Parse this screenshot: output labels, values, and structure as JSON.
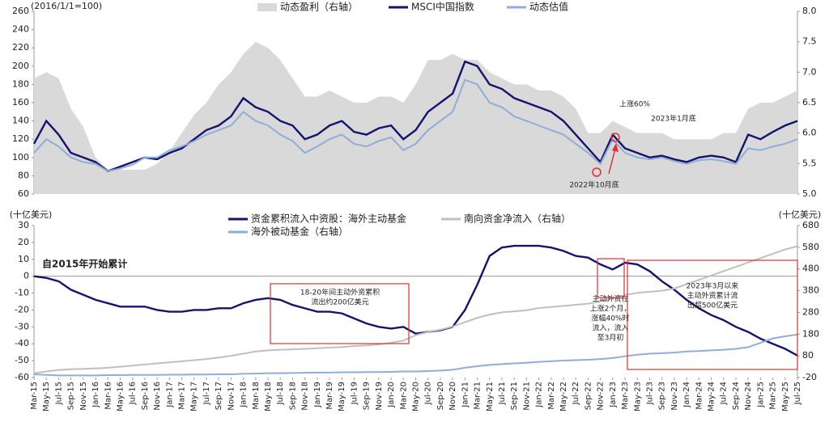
{
  "chart_data": [
    {
      "type": "line",
      "y_axis_label": "(2016/1/1=100)",
      "categories": [
        null,
        null,
        null,
        null,
        null,
        null,
        null,
        null,
        null,
        null,
        null,
        null,
        null,
        null,
        null,
        null,
        null,
        null,
        null,
        null,
        null,
        null,
        null,
        null,
        null,
        null,
        null,
        null,
        null,
        null,
        null,
        null,
        null,
        null,
        null,
        null,
        null,
        null,
        null,
        null,
        null,
        null,
        null,
        null,
        null,
        null,
        null,
        null,
        null,
        null,
        null,
        null,
        null,
        null,
        null,
        null,
        null,
        null,
        null,
        null,
        null,
        null,
        null
      ],
      "ylim": [
        60,
        260
      ],
      "yticks": [
        60,
        80,
        100,
        120,
        140,
        160,
        180,
        200,
        220,
        240,
        260
      ],
      "y2lim": [
        5,
        8
      ],
      "y2ticks": [
        {
          "value": 5,
          "label": "5.0"
        },
        {
          "value": 5.5,
          "label": "5.5"
        },
        {
          "value": 6,
          "label": "6.0"
        },
        {
          "value": 6.5,
          "label": "6.5"
        },
        {
          "value": 7,
          "label": "7.0"
        },
        {
          "value": 7.5,
          "label": "7.5"
        },
        {
          "value": 8,
          "label": "8.0"
        }
      ],
      "series": [
        {
          "name": "动态盈利（右轴）",
          "type": "area",
          "axis": "y2",
          "color": "#d9d9d9",
          "values": [
            6.9,
            7.0,
            6.9,
            6.4,
            6.1,
            5.6,
            5.4,
            5.4,
            5.4,
            5.4,
            5.5,
            5.7,
            6.0,
            6.3,
            6.5,
            6.8,
            7.0,
            7.3,
            7.5,
            7.4,
            7.2,
            6.9,
            6.6,
            6.6,
            6.7,
            6.6,
            6.5,
            6.5,
            6.6,
            6.6,
            6.5,
            6.8,
            7.2,
            7.2,
            7.3,
            7.2,
            7.2,
            7.0,
            6.9,
            6.8,
            6.8,
            6.7,
            6.7,
            6.6,
            6.4,
            6.0,
            6.0,
            6.2,
            6.1,
            6.0,
            6.0,
            6.0,
            5.9,
            5.9,
            5.9,
            5.9,
            6.0,
            6.0,
            6.4,
            6.5,
            6.5,
            6.6,
            6.7
          ]
        },
        {
          "name": "MSCI中国指数",
          "type": "line",
          "color": "#14146e",
          "values": [
            115,
            140,
            125,
            105,
            100,
            95,
            85,
            90,
            95,
            100,
            98,
            105,
            110,
            120,
            130,
            135,
            145,
            165,
            155,
            150,
            140,
            135,
            120,
            125,
            135,
            140,
            128,
            125,
            132,
            135,
            120,
            130,
            150,
            160,
            170,
            205,
            200,
            180,
            175,
            165,
            160,
            155,
            150,
            140,
            125,
            110,
            95,
            125,
            110,
            105,
            100,
            102,
            98,
            95,
            100,
            102,
            100,
            95,
            125,
            120,
            128,
            135,
            140
          ]
        },
        {
          "name": "动态估值",
          "type": "line",
          "color": "#8eaed8",
          "values": [
            105,
            120,
            112,
            100,
            95,
            93,
            85,
            88,
            92,
            100,
            100,
            108,
            112,
            118,
            125,
            130,
            135,
            150,
            140,
            135,
            125,
            118,
            105,
            112,
            120,
            125,
            115,
            112,
            118,
            122,
            108,
            115,
            130,
            140,
            150,
            185,
            180,
            160,
            155,
            145,
            140,
            135,
            130,
            125,
            115,
            105,
            93,
            120,
            105,
            100,
            98,
            100,
            96,
            93,
            97,
            98,
            96,
            93,
            110,
            108,
            112,
            115,
            120
          ]
        }
      ],
      "annotations": [
        {
          "lines": [
            "上涨60%"
          ]
        },
        {
          "lines": [
            "2023年1月底"
          ]
        },
        {
          "lines": [
            "2022年10月底"
          ]
        }
      ]
    },
    {
      "type": "line",
      "y_axis_label": "(十亿美元)",
      "y2_axis_label": "(十亿美元)",
      "categories": [
        "Mar-15",
        "May-15",
        "Jul-15",
        "Sep-15",
        "Nov-15",
        "Jan-16",
        "Mar-16",
        "May-16",
        "Jul-16",
        "Sep-16",
        "Nov-16",
        "Jan-17",
        "Mar-17",
        "May-17",
        "Jul-17",
        "Sep-17",
        "Nov-17",
        "Jan-18",
        "Mar-18",
        "May-18",
        "Jul-18",
        "Sep-18",
        "Nov-18",
        "Jan-19",
        "Mar-19",
        "May-19",
        "Jul-19",
        "Sep-19",
        "Nov-19",
        "Jan-20",
        "Mar-20",
        "May-20",
        "Jul-20",
        "Sep-20",
        "Nov-20",
        "Jan-21",
        "Mar-21",
        "May-21",
        "Jul-21",
        "Sep-21",
        "Nov-21",
        "Jan-22",
        "Mar-22",
        "May-22",
        "Jul-22",
        "Sep-22",
        "Nov-22",
        "Jan-23",
        "Mar-23",
        "May-23",
        "Jul-23",
        "Sep-23",
        "Nov-23",
        "Jan-24",
        "Mar-24",
        "May-24",
        "Jul-24",
        "Sep-24",
        "Nov-24",
        "Jan-25",
        "Mar-25",
        "May-25",
        "Jul-25"
      ],
      "ylim": [
        -60,
        30
      ],
      "yticks": [
        -60,
        -50,
        -40,
        -30,
        -20,
        -10,
        0,
        10,
        20,
        30
      ],
      "y2lim": [
        -20,
        680
      ],
      "y2ticks": [
        -20,
        80,
        180,
        280,
        380,
        480,
        580,
        680
      ],
      "series": [
        {
          "name": "资金累积流入中资股：海外主动基金",
          "type": "line",
          "color": "#14146e",
          "values": [
            0,
            -1,
            -3,
            -8,
            -11,
            -14,
            -16,
            -18,
            -18,
            -18,
            -20,
            -21,
            -21,
            -20,
            -20,
            -19,
            -19,
            -16,
            -14,
            -13,
            -14,
            -17,
            -19,
            -21,
            -21,
            -22,
            -25,
            -28,
            -30,
            -31,
            -30,
            -34,
            -33,
            -32,
            -30,
            -20,
            -5,
            12,
            17,
            18,
            18,
            18,
            17,
            15,
            12,
            11,
            7,
            4,
            8,
            7,
            3,
            -3,
            -8,
            -14,
            -19,
            -23,
            -26,
            -30,
            -33,
            -37,
            -40,
            -43,
            -47
          ]
        },
        {
          "name": "南向资金净流入（右轴）",
          "type": "line",
          "axis": "y2",
          "color": "#bfbfbf",
          "values": [
            0,
            8,
            15,
            18,
            20,
            22,
            25,
            30,
            35,
            40,
            45,
            50,
            55,
            60,
            65,
            72,
            80,
            90,
            100,
            105,
            108,
            110,
            112,
            115,
            118,
            120,
            125,
            128,
            132,
            140,
            150,
            175,
            190,
            200,
            215,
            235,
            255,
            270,
            280,
            285,
            290,
            300,
            305,
            310,
            315,
            320,
            330,
            345,
            360,
            370,
            375,
            380,
            390,
            410,
            430,
            450,
            470,
            490,
            510,
            530,
            550,
            570,
            585
          ]
        },
        {
          "name": "海外被动基金（右轴）",
          "type": "line",
          "axis": "y2",
          "color": "#8eaed8",
          "values": [
            -5,
            -8,
            -10,
            -10,
            -10,
            -10,
            -9,
            -9,
            -8,
            -8,
            -8,
            -7,
            -7,
            -6,
            -6,
            -5,
            -5,
            -3,
            -2,
            0,
            0,
            1,
            2,
            3,
            3,
            4,
            4,
            5,
            5,
            6,
            8,
            8,
            10,
            12,
            16,
            25,
            32,
            38,
            42,
            45,
            48,
            52,
            55,
            58,
            60,
            62,
            65,
            70,
            78,
            85,
            90,
            92,
            95,
            100,
            102,
            105,
            108,
            112,
            120,
            140,
            160,
            170,
            178
          ]
        }
      ],
      "annotations": [
        {
          "lines": [
            "自2015年开始累计"
          ]
        },
        {
          "lines": [
            "18-20年间主动外资累积",
            "流出约200亿美元"
          ]
        },
        {
          "lines": [
            "主动外资在",
            "上涨2个月，",
            "涨幅40%时",
            "流入，流入",
            "至3月初"
          ]
        },
        {
          "lines": [
            "2023年3月以来",
            "主动外资累计流",
            "出超500亿美元"
          ]
        }
      ]
    }
  ]
}
